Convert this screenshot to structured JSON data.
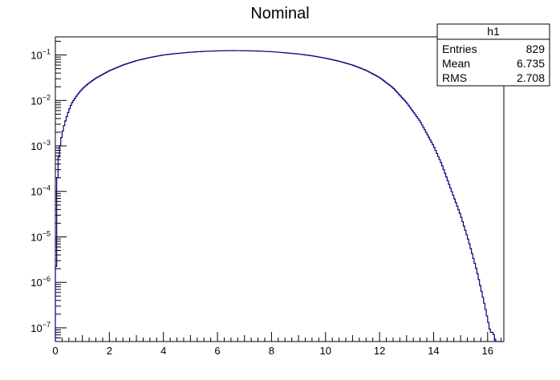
{
  "chart_data": {
    "type": "line",
    "title": "Nominal",
    "xlabel": "",
    "ylabel": "",
    "xlim": [
      0,
      16.6
    ],
    "ylim": [
      5e-08,
      0.25
    ],
    "yscale": "log",
    "grid": false,
    "line_color": "#000080",
    "x_ticks": [
      "0",
      "2",
      "4",
      "6",
      "8",
      "10",
      "12",
      "14",
      "16"
    ],
    "y_ticks": [
      {
        "base": "10",
        "exp": "−7"
      },
      {
        "base": "10",
        "exp": "−6"
      },
      {
        "base": "10",
        "exp": "−5"
      },
      {
        "base": "10",
        "exp": "−4"
      },
      {
        "base": "10",
        "exp": "−3"
      },
      {
        "base": "10",
        "exp": "−2"
      },
      {
        "base": "10",
        "exp": "−1"
      }
    ],
    "series": [
      {
        "x": [
          0.0,
          0.05,
          0.1,
          0.15,
          0.2,
          0.3,
          0.4,
          0.5,
          0.6,
          0.8,
          1.0,
          1.2,
          1.5,
          2.0,
          2.5,
          3.0,
          3.5,
          4.0,
          4.5,
          5.0,
          5.5,
          6.0,
          6.5,
          7.0,
          7.5,
          8.0,
          8.5,
          9.0,
          9.5,
          10.0,
          10.5,
          11.0,
          11.5,
          12.0,
          12.5,
          13.0,
          13.5,
          14.0,
          14.3,
          14.6,
          15.0,
          15.3,
          15.6,
          15.9,
          16.1,
          16.2,
          16.3,
          16.35,
          16.4,
          16.5
        ],
        "y": [
          5e-08,
          0.0001,
          0.0004,
          0.0008,
          0.0013,
          0.0025,
          0.004,
          0.006,
          0.0085,
          0.013,
          0.018,
          0.023,
          0.031,
          0.045,
          0.06,
          0.075,
          0.088,
          0.1,
          0.108,
          0.115,
          0.12,
          0.123,
          0.125,
          0.124,
          0.122,
          0.118,
          0.112,
          0.105,
          0.096,
          0.085,
          0.073,
          0.06,
          0.046,
          0.032,
          0.019,
          0.009,
          0.0035,
          0.001,
          0.0004,
          0.00013,
          3e-05,
          8e-06,
          1.8e-06,
          3e-07,
          8e-08,
          8e-08,
          5e-08,
          5e-08,
          5e-08,
          5e-08
        ]
      }
    ]
  },
  "stats_box": {
    "title": "h1",
    "rows": [
      {
        "label": "Entries",
        "value": "829"
      },
      {
        "label": "Mean",
        "value": "6.735"
      },
      {
        "label": "RMS",
        "value": "2.708"
      }
    ]
  }
}
